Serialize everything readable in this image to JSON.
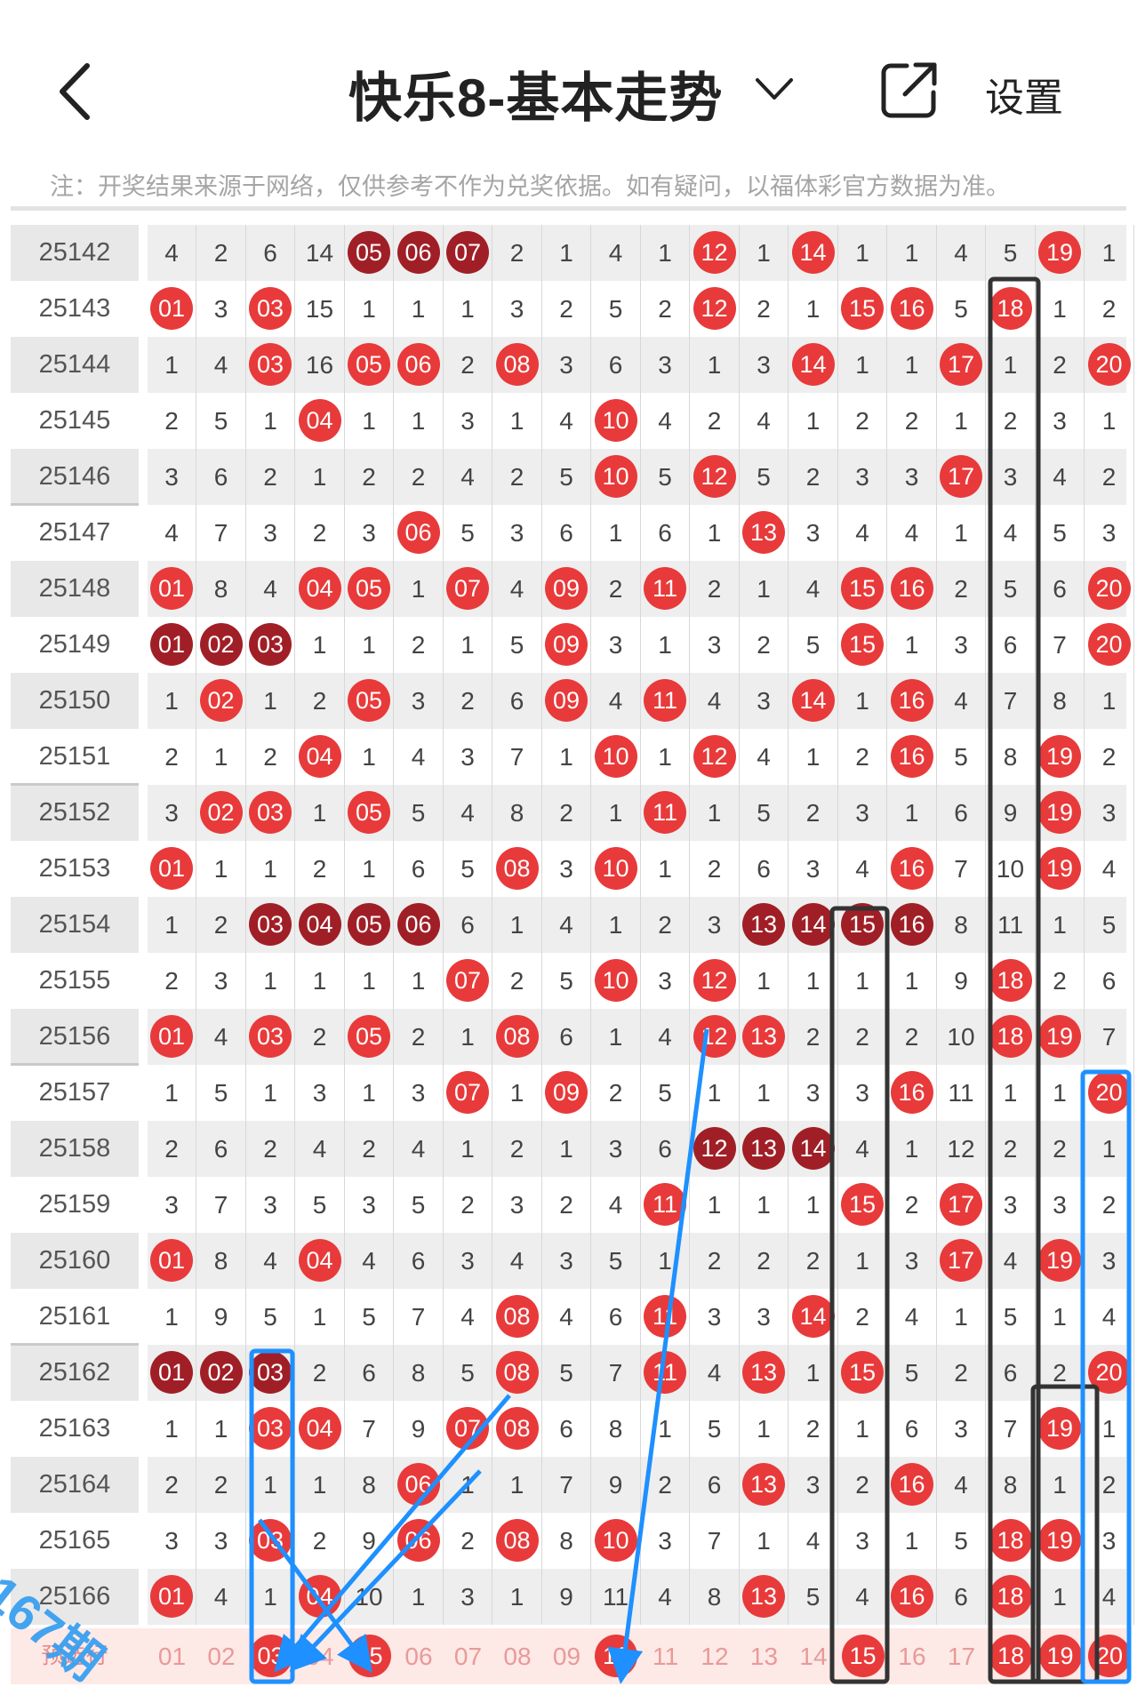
{
  "header": {
    "title": "快乐8-基本走势",
    "settings_label": "设置",
    "icons": {
      "back": "back-arrow-icon",
      "dropdown": "chevron-down-icon",
      "share": "share-icon"
    }
  },
  "notice": "注：开奖结果来源于网络，仅供参考不作为兑奖依据。如有疑问，以福体彩官方数据为准。",
  "colors": {
    "ball_red": "#e83a3a",
    "ball_dark": "#a01f27",
    "annotation_blue": "#1e90ff",
    "annotation_black": "#333333"
  },
  "rows": [
    {
      "issue": "25142",
      "cells": [
        "4",
        "2",
        "6",
        "14",
        "*05",
        "*06",
        "*07",
        "2",
        "1",
        "4",
        "1",
        "12",
        "1",
        "14",
        "1",
        "1",
        "4",
        "5",
        "19",
        "1"
      ]
    },
    {
      "issue": "25143",
      "cells": [
        "01",
        "3",
        "03",
        "15",
        "1",
        "1",
        "1",
        "3",
        "2",
        "5",
        "2",
        "12",
        "2",
        "1",
        "15",
        "16",
        "5",
        "18",
        "1",
        "2"
      ]
    },
    {
      "issue": "25144",
      "cells": [
        "1",
        "4",
        "03",
        "16",
        "05",
        "06",
        "2",
        "08",
        "3",
        "6",
        "3",
        "1",
        "3",
        "14",
        "1",
        "1",
        "17",
        "1",
        "2",
        "20"
      ]
    },
    {
      "issue": "25145",
      "cells": [
        "2",
        "5",
        "1",
        "04",
        "1",
        "1",
        "3",
        "1",
        "4",
        "10",
        "4",
        "2",
        "4",
        "1",
        "2",
        "2",
        "1",
        "2",
        "3",
        "1"
      ]
    },
    {
      "issue": "25146",
      "cells": [
        "3",
        "6",
        "2",
        "1",
        "2",
        "2",
        "4",
        "2",
        "5",
        "10",
        "5",
        "12",
        "5",
        "2",
        "3",
        "3",
        "17",
        "3",
        "4",
        "2"
      ]
    },
    {
      "issue": "25147",
      "cells": [
        "4",
        "7",
        "3",
        "2",
        "3",
        "06",
        "5",
        "3",
        "6",
        "1",
        "6",
        "1",
        "13",
        "3",
        "4",
        "4",
        "1",
        "4",
        "5",
        "3"
      ]
    },
    {
      "issue": "25148",
      "cells": [
        "01",
        "8",
        "4",
        "04",
        "05",
        "1",
        "07",
        "4",
        "09",
        "2",
        "11",
        "2",
        "1",
        "4",
        "15",
        "16",
        "2",
        "5",
        "6",
        "20"
      ]
    },
    {
      "issue": "25149",
      "cells": [
        "*01",
        "*02",
        "*03",
        "1",
        "1",
        "2",
        "1",
        "5",
        "09",
        "3",
        "1",
        "3",
        "2",
        "5",
        "15",
        "1",
        "3",
        "6",
        "7",
        "20"
      ]
    },
    {
      "issue": "25150",
      "cells": [
        "1",
        "02",
        "1",
        "2",
        "05",
        "3",
        "2",
        "6",
        "09",
        "4",
        "11",
        "4",
        "3",
        "14",
        "1",
        "16",
        "4",
        "7",
        "8",
        "1"
      ]
    },
    {
      "issue": "25151",
      "cells": [
        "2",
        "1",
        "2",
        "04",
        "1",
        "4",
        "3",
        "7",
        "1",
        "10",
        "1",
        "12",
        "4",
        "1",
        "2",
        "16",
        "5",
        "8",
        "19",
        "2"
      ]
    },
    {
      "issue": "25152",
      "cells": [
        "3",
        "02",
        "03",
        "1",
        "05",
        "5",
        "4",
        "8",
        "2",
        "1",
        "11",
        "1",
        "5",
        "2",
        "3",
        "1",
        "6",
        "9",
        "19",
        "3"
      ]
    },
    {
      "issue": "25153",
      "cells": [
        "01",
        "1",
        "1",
        "2",
        "1",
        "6",
        "5",
        "08",
        "3",
        "10",
        "1",
        "2",
        "6",
        "3",
        "4",
        "16",
        "7",
        "10",
        "19",
        "4"
      ]
    },
    {
      "issue": "25154",
      "cells": [
        "1",
        "2",
        "*03",
        "*04",
        "*05",
        "*06",
        "6",
        "1",
        "4",
        "1",
        "2",
        "3",
        "*13",
        "*14",
        "*15",
        "*16",
        "8",
        "11",
        "1",
        "5"
      ]
    },
    {
      "issue": "25155",
      "cells": [
        "2",
        "3",
        "1",
        "1",
        "1",
        "1",
        "07",
        "2",
        "5",
        "10",
        "3",
        "12",
        "1",
        "1",
        "1",
        "1",
        "9",
        "18",
        "2",
        "6"
      ]
    },
    {
      "issue": "25156",
      "cells": [
        "01",
        "4",
        "03",
        "2",
        "05",
        "2",
        "1",
        "08",
        "6",
        "1",
        "4",
        "12",
        "13",
        "2",
        "2",
        "2",
        "10",
        "18",
        "19",
        "7"
      ]
    },
    {
      "issue": "25157",
      "cells": [
        "1",
        "5",
        "1",
        "3",
        "1",
        "3",
        "07",
        "1",
        "09",
        "2",
        "5",
        "1",
        "1",
        "3",
        "3",
        "16",
        "11",
        "1",
        "1",
        "20"
      ]
    },
    {
      "issue": "25158",
      "cells": [
        "2",
        "6",
        "2",
        "4",
        "2",
        "4",
        "1",
        "2",
        "1",
        "3",
        "6",
        "*12",
        "*13",
        "*14",
        "4",
        "1",
        "12",
        "2",
        "2",
        "1"
      ]
    },
    {
      "issue": "25159",
      "cells": [
        "3",
        "7",
        "3",
        "5",
        "3",
        "5",
        "2",
        "3",
        "2",
        "4",
        "11",
        "1",
        "1",
        "1",
        "15",
        "2",
        "17",
        "3",
        "3",
        "2"
      ]
    },
    {
      "issue": "25160",
      "cells": [
        "01",
        "8",
        "4",
        "04",
        "4",
        "6",
        "3",
        "4",
        "3",
        "5",
        "1",
        "2",
        "2",
        "2",
        "1",
        "3",
        "17",
        "4",
        "19",
        "3"
      ]
    },
    {
      "issue": "25161",
      "cells": [
        "1",
        "9",
        "5",
        "1",
        "5",
        "7",
        "4",
        "08",
        "4",
        "6",
        "11",
        "3",
        "3",
        "14",
        "2",
        "4",
        "1",
        "5",
        "1",
        "4"
      ]
    },
    {
      "issue": "25162",
      "cells": [
        "*01",
        "*02",
        "*03",
        "2",
        "6",
        "8",
        "5",
        "08",
        "5",
        "7",
        "11",
        "4",
        "13",
        "1",
        "15",
        "5",
        "2",
        "6",
        "2",
        "20"
      ]
    },
    {
      "issue": "25163",
      "cells": [
        "1",
        "1",
        "03",
        "04",
        "7",
        "9",
        "07",
        "08",
        "6",
        "8",
        "1",
        "5",
        "1",
        "2",
        "1",
        "6",
        "3",
        "7",
        "19",
        "1"
      ]
    },
    {
      "issue": "25164",
      "cells": [
        "2",
        "2",
        "1",
        "1",
        "8",
        "06",
        "1",
        "1",
        "7",
        "9",
        "2",
        "6",
        "13",
        "3",
        "2",
        "16",
        "4",
        "8",
        "1",
        "2"
      ]
    },
    {
      "issue": "25165",
      "cells": [
        "3",
        "3",
        "03",
        "2",
        "9",
        "06",
        "2",
        "08",
        "8",
        "10",
        "3",
        "7",
        "1",
        "4",
        "3",
        "1",
        "5",
        "18",
        "19",
        "3"
      ]
    },
    {
      "issue": "25166",
      "cells": [
        "01",
        "4",
        "1",
        "04",
        "10",
        "1",
        "3",
        "1",
        "9",
        "11",
        "4",
        "8",
        "13",
        "5",
        "4",
        "16",
        "6",
        "18",
        "1",
        "4"
      ]
    }
  ],
  "pick_row": {
    "label": "预选行",
    "cells": [
      "01",
      "02",
      "03",
      "04",
      "05",
      "06",
      "07",
      "08",
      "09",
      "10",
      "11",
      "12",
      "13",
      "14",
      "15",
      "16",
      "17",
      "18",
      "19",
      "20"
    ],
    "selected": [
      "03",
      "05",
      "10",
      "15",
      "18",
      "19",
      "20"
    ]
  },
  "annotation_text": "167期"
}
